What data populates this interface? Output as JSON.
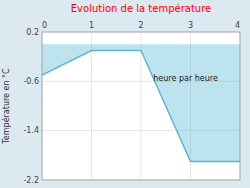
{
  "chart_data": {
    "type": "area",
    "title": "Evolution de la température",
    "y_label": "Température en °C",
    "x": [
      0,
      1,
      2,
      3,
      4
    ],
    "values": [
      -0.5,
      -0.1,
      -0.1,
      -1.9,
      -1.9
    ],
    "color": "#5bb8d4",
    "xlim": [
      0,
      4
    ],
    "ylim": [
      -2.2,
      0.2
    ],
    "xticks": [
      0,
      1,
      2,
      3,
      4
    ],
    "yticks": [
      0.2,
      -0.6,
      -1.4,
      -2.2
    ],
    "grid": true,
    "annotations": [
      {
        "text": "heure par heure",
        "x": 2.9,
        "y": -0.5
      }
    ]
  }
}
